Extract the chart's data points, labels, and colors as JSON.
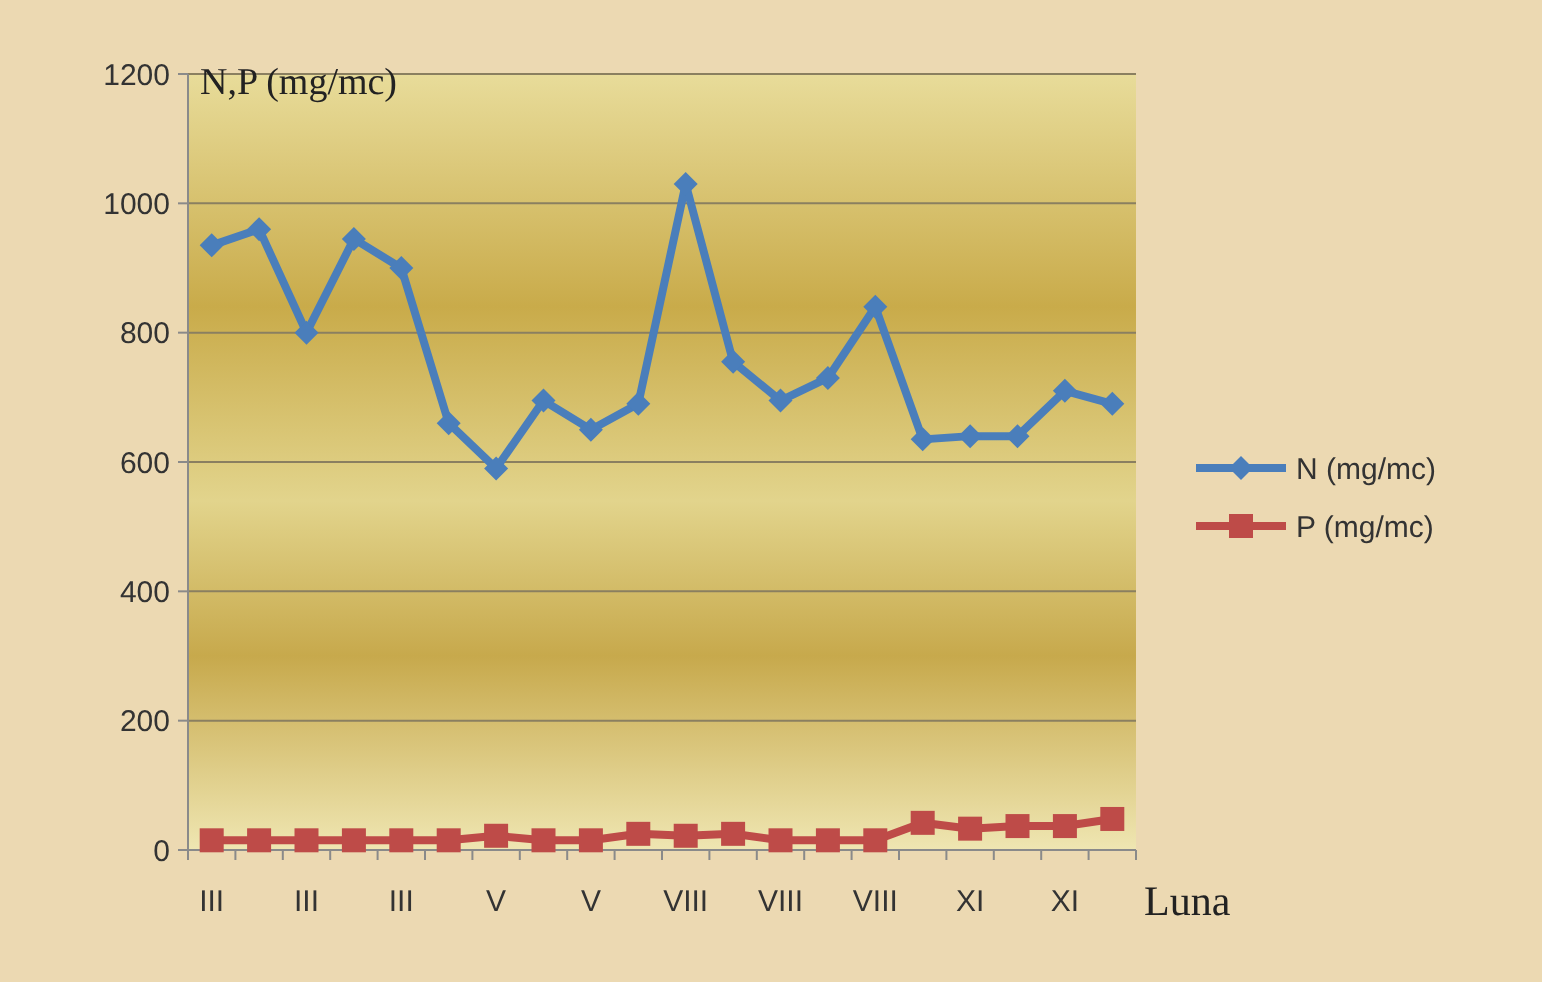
{
  "chart_data": {
    "type": "line",
    "ylabel": "N,P (mg/mc)",
    "xlabel": "Luna",
    "categories": [
      "III",
      null,
      "III",
      null,
      "III",
      null,
      "V",
      null,
      "V",
      null,
      "VIII",
      null,
      "VIII",
      null,
      "VIII",
      null,
      "XI",
      null,
      "XI",
      null
    ],
    "series": [
      {
        "name": "N (mg/mc)",
        "color": "#4a7ebb",
        "marker": "diamond",
        "values": [
          935,
          960,
          800,
          945,
          900,
          660,
          590,
          695,
          650,
          690,
          1030,
          755,
          695,
          730,
          840,
          635,
          640,
          640,
          710,
          690
        ]
      },
      {
        "name": "P (mg/mc)",
        "color": "#be4b48",
        "marker": "square",
        "values": [
          15,
          15,
          15,
          15,
          15,
          15,
          22,
          15,
          15,
          25,
          22,
          25,
          15,
          15,
          15,
          42,
          33,
          37,
          37,
          48
        ]
      }
    ],
    "ylim": [
      0,
      1200
    ],
    "yticks": [
      0,
      200,
      400,
      600,
      800,
      1000,
      1200
    ],
    "grid": "y",
    "legend": "right"
  }
}
